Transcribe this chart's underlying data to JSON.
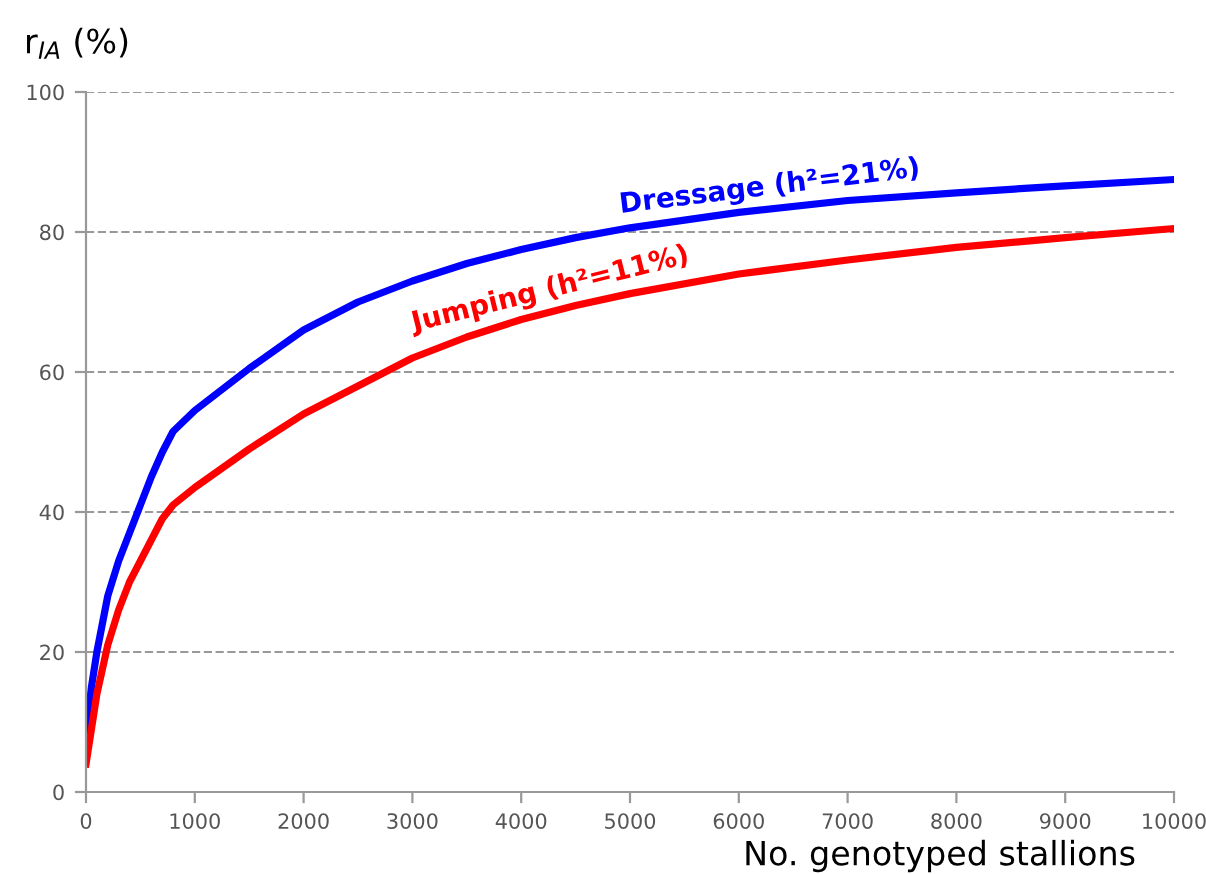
{
  "chart_data": {
    "type": "line",
    "xlabel": "No. genotyped stallions",
    "ylabel": "r$_{IA}$ (%)",
    "xlim": [
      0,
      10000
    ],
    "xticks": [
      0,
      1000,
      2000,
      3000,
      4000,
      5000,
      6000,
      7000,
      8000,
      9000,
      10000
    ],
    "ylim": [
      0,
      100
    ],
    "yticks": [
      0,
      20,
      40,
      60,
      80,
      100
    ],
    "grid": "y",
    "legend": false,
    "marker": "none",
    "line_style": "solid",
    "x": [
      0,
      50,
      100,
      200,
      300,
      400,
      500,
      600,
      700,
      800,
      1000,
      1500,
      2000,
      2500,
      3000,
      3500,
      4000,
      4500,
      5000,
      6000,
      7000,
      8000,
      9000,
      10000
    ],
    "series": [
      {
        "name": "Dressage (h²=21%)",
        "color": "#0000ff",
        "values": [
          8,
          15,
          20,
          28,
          33,
          37,
          41,
          45,
          48.5,
          51.5,
          54.5,
          60.5,
          66,
          70,
          73,
          75.5,
          77.5,
          79.2,
          80.6,
          82.8,
          84.5,
          85.6,
          86.6,
          87.5
        ]
      },
      {
        "name": "Jumping (h²=11%)",
        "color": "#ff0000",
        "values": [
          4,
          9,
          14,
          21,
          26,
          30,
          33,
          36,
          39,
          41,
          43.5,
          49,
          54,
          58,
          62,
          65,
          67.5,
          69.5,
          71.2,
          74,
          76,
          77.8,
          79.2,
          80.5
        ]
      }
    ]
  }
}
